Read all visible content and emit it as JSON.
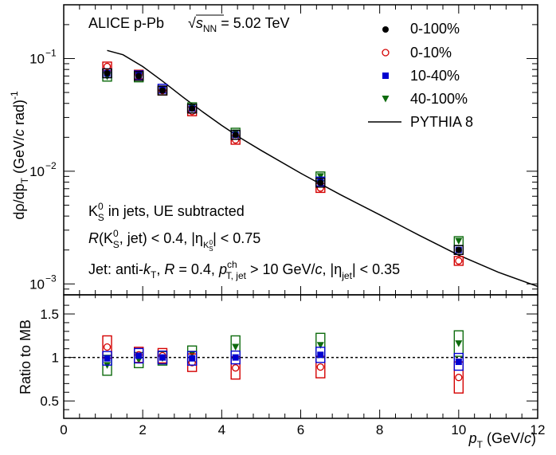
{
  "chart_data": {
    "type": "scatter",
    "collaboration": "ALICE p-Pb",
    "energy_prefix": "√",
    "energy_s": "s",
    "energy_sub": "NN",
    "energy_value": " = 5.02 TeV",
    "ylabel_main": "dρ/dp",
    "ylabel_main_sub": "T",
    "ylabel_main_unit": " (GeV/",
    "ylabel_main_c": "c",
    "ylabel_main_rad": " rad)",
    "ylabel_main_sup": "-1",
    "ylabel_ratio": "Ratio to MB",
    "xlabel_p": "p",
    "xlabel_sub": "T",
    "xlabel_unit": " (GeV/",
    "xlabel_c": "c",
    "xlabel_close": ")",
    "annotations": {
      "line1_k": "K",
      "line1_sup": "0",
      "line1_sub": "S",
      "line1_rest": " in jets, UE subtracted",
      "line2_R": "R",
      "line2_open": "(K",
      "line2_sup": "0",
      "line2_sub": "S",
      "line2_mid": ", jet) < 0.4, |η",
      "line2_eta_sub": "K",
      "line2_eta_subsub": "S",
      "line2_eta_subsup": "0",
      "line2_end": "| < 0.75",
      "line3_a": "Jet: anti-",
      "line3_k": "k",
      "line3_ksub": "T",
      "line3_b": ", ",
      "line3_R": "R",
      "line3_c": " = 0.4, ",
      "line3_p": "p",
      "line3_psup": "ch",
      "line3_psub": "T, jet",
      "line3_d": " > 10 GeV/",
      "line3_cc": "c",
      "line3_e": ", |η",
      "line3_esub": "jet",
      "line3_f": "| < 0.35"
    },
    "xlim": [
      0,
      12
    ],
    "xticks": [
      "0",
      "2",
      "4",
      "6",
      "8",
      "10",
      "12"
    ],
    "ylim_main": [
      0.0008,
      0.3
    ],
    "ylog": true,
    "yticks_main": [
      {
        "value": 0.1,
        "base": "10",
        "exp": "−1"
      },
      {
        "value": 0.01,
        "base": "10",
        "exp": "−2"
      },
      {
        "value": 0.001,
        "base": "10",
        "exp": "−3"
      }
    ],
    "ylim_ratio": [
      0.3,
      1.72
    ],
    "yticks_ratio": [
      {
        "value": 0.5,
        "label": "0.5"
      },
      {
        "value": 1,
        "label": "1"
      },
      {
        "value": 1.5,
        "label": "1.5"
      }
    ],
    "reference_line": 1,
    "legend_position": "top-right",
    "x": [
      1.1,
      1.9,
      2.5,
      3.25,
      4.35,
      6.5,
      10.0
    ],
    "series": [
      {
        "name": "0-100%",
        "marker": "filled-circle",
        "color": "#000000",
        "values": [
          0.074,
          0.07,
          0.052,
          0.036,
          0.021,
          0.0079,
          0.002
        ],
        "ratio": [
          1.0,
          1.0,
          1.0,
          1.0,
          1.0,
          1.0,
          1.0
        ]
      },
      {
        "name": "0-10%",
        "marker": "open-circle",
        "color": "#d40000",
        "values": [
          0.085,
          0.072,
          0.052,
          0.034,
          0.019,
          0.0071,
          0.0016
        ],
        "ratio": [
          1.12,
          1.03,
          1.02,
          0.94,
          0.88,
          0.89,
          0.77
        ]
      },
      {
        "name": "10-40%",
        "marker": "filled-square",
        "color": "#0000d0",
        "values": [
          0.074,
          0.071,
          0.054,
          0.036,
          0.021,
          0.0081,
          0.002
        ],
        "ratio": [
          0.99,
          1.02,
          1.0,
          0.99,
          1.0,
          1.03,
          0.95
        ]
      },
      {
        "name": "40-100%",
        "marker": "filled-triangle-down",
        "color": "#0d6b0d",
        "values": [
          0.069,
          0.068,
          0.052,
          0.037,
          0.022,
          0.009,
          0.0024
        ],
        "ratio": [
          0.91,
          0.97,
          0.99,
          1.04,
          1.12,
          1.14,
          1.16
        ]
      },
      {
        "name": "PYTHIA 8",
        "marker": "line",
        "color": "#000000",
        "curve": {
          "x": [
            1.1,
            1.5,
            2.0,
            2.5,
            3.0,
            3.5,
            4.0,
            4.5,
            5.0,
            6.0,
            7.0,
            8.0,
            9.0,
            10.0,
            11.0,
            12.0
          ],
          "y": [
            0.118,
            0.108,
            0.085,
            0.063,
            0.046,
            0.034,
            0.0255,
            0.0195,
            0.0153,
            0.0096,
            0.0062,
            0.0041,
            0.0027,
            0.0018,
            0.00127,
            0.00095
          ]
        }
      }
    ]
  }
}
